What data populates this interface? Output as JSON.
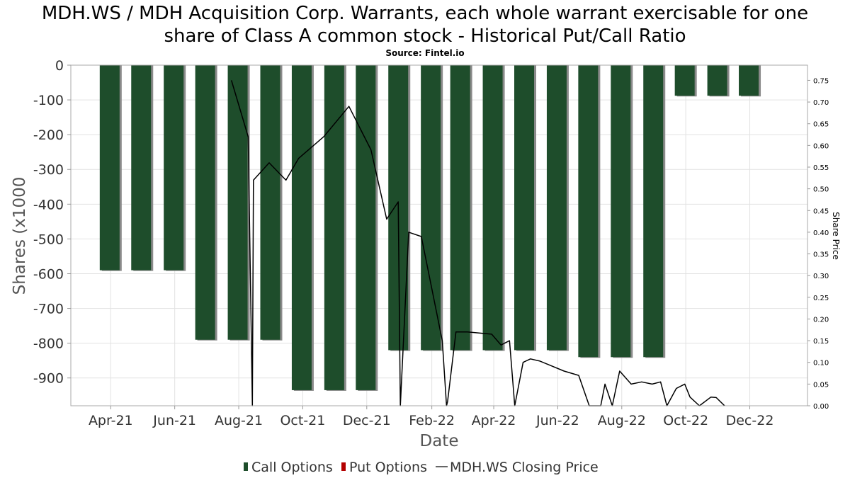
{
  "chart_data": {
    "type": "bar",
    "title_lines": [
      "MDH.WS / MDH Acquisition Corp. Warrants, each whole warrant exercisable for one",
      "share of Class A common stock - Historical Put/Call Ratio"
    ],
    "subtitle": "Source: Fintel.io",
    "xlabel": "Date",
    "ylabel": "Shares (x1000",
    "y2label": "Share Price",
    "ylim": [
      -980,
      0
    ],
    "y2lim": [
      0,
      0.785
    ],
    "y_ticks": [
      0,
      -100,
      -200,
      -300,
      -400,
      -500,
      -600,
      -700,
      -800,
      -900
    ],
    "y2_ticks": [
      "0.00",
      "0.05",
      "0.10",
      "0.15",
      "0.20",
      "0.25",
      "0.30",
      "0.35",
      "0.40",
      "0.45",
      "0.50",
      "0.55",
      "0.60",
      "0.65",
      "0.70",
      "0.75"
    ],
    "x_range": [
      "2021-02-22",
      "2023-01-25"
    ],
    "x_ticks": [
      {
        "label": "Apr-21",
        "date": "2021-04-01"
      },
      {
        "label": "Jun-21",
        "date": "2021-06-01"
      },
      {
        "label": "Aug-21",
        "date": "2021-08-01"
      },
      {
        "label": "Oct-21",
        "date": "2021-10-01"
      },
      {
        "label": "Dec-21",
        "date": "2021-12-01"
      },
      {
        "label": "Feb-22",
        "date": "2022-02-01"
      },
      {
        "label": "Apr-22",
        "date": "2022-04-01"
      },
      {
        "label": "Jun-22",
        "date": "2022-06-01"
      },
      {
        "label": "Aug-22",
        "date": "2022-08-01"
      },
      {
        "label": "Oct-22",
        "date": "2022-10-01"
      },
      {
        "label": "Dec-22",
        "date": "2022-12-01"
      }
    ],
    "grid": true,
    "legend_position": "bottom",
    "series": [
      {
        "name": "Call Options",
        "color": "#1e4d2b",
        "dates": [
          "2021-03-31",
          "2021-04-30",
          "2021-05-31",
          "2021-06-30",
          "2021-07-31",
          "2021-08-31",
          "2021-09-30",
          "2021-10-31",
          "2021-11-30",
          "2021-12-31",
          "2022-01-31",
          "2022-02-28",
          "2022-03-31",
          "2022-04-30",
          "2022-05-31",
          "2022-06-30",
          "2022-07-31",
          "2022-08-31",
          "2022-09-30",
          "2022-10-31",
          "2022-11-30"
        ],
        "values": [
          -590,
          -590,
          -590,
          -790,
          -790,
          -790,
          -935,
          -935,
          -935,
          -820,
          -820,
          -820,
          -820,
          -820,
          -820,
          -840,
          -840,
          -840,
          -88,
          -88,
          -88
        ]
      },
      {
        "name": "Put Options",
        "color": "#b30000",
        "dates": [],
        "values": []
      },
      {
        "name": "MDH.WS Closing Price",
        "color": "#000000",
        "dates": [
          "2021-07-25",
          "2021-08-10",
          "2021-08-14",
          "2021-08-15",
          "2021-08-30",
          "2021-09-15",
          "2021-09-27",
          "2021-10-21",
          "2021-11-14",
          "2021-12-05",
          "2021-12-20",
          "2021-12-31",
          "2022-01-02",
          "2022-01-10",
          "2022-01-22",
          "2022-02-11",
          "2022-02-15",
          "2022-02-16",
          "2022-02-24",
          "2022-03-07",
          "2022-03-30",
          "2022-04-08",
          "2022-04-16",
          "2022-04-21",
          "2022-04-29",
          "2022-05-06",
          "2022-05-15",
          "2022-05-24",
          "2022-06-07",
          "2022-06-21",
          "2022-07-01",
          "2022-07-12",
          "2022-07-16",
          "2022-07-23",
          "2022-07-30",
          "2022-08-10",
          "2022-08-20",
          "2022-08-30",
          "2022-09-07",
          "2022-09-13",
          "2022-09-22",
          "2022-09-30",
          "2022-10-05",
          "2022-10-14",
          "2022-10-25",
          "2022-10-30",
          "2022-11-07"
        ],
        "values": [
          0.75,
          0.62,
          0.0,
          0.52,
          0.56,
          0.52,
          0.57,
          0.62,
          0.69,
          0.59,
          0.43,
          0.47,
          0.0,
          0.4,
          0.39,
          0.15,
          0.0,
          0.01,
          0.17,
          0.17,
          0.165,
          0.14,
          0.15,
          0.0,
          0.1,
          0.108,
          0.103,
          0.094,
          0.08,
          0.07,
          0.0,
          0.0,
          0.05,
          0.0,
          0.08,
          0.05,
          0.055,
          0.05,
          0.055,
          0.0,
          0.04,
          0.05,
          0.02,
          0.0,
          0.02,
          0.019,
          0.0
        ]
      }
    ]
  }
}
